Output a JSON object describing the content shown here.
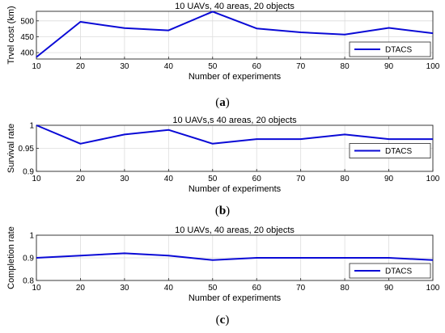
{
  "chart_data": [
    {
      "type": "line",
      "panel_label": "a",
      "title": "10 UAVs, 40 areas, 20 objects",
      "xlabel": "Number of experiments",
      "ylabel": "Trvel cost (km)",
      "x": [
        10,
        20,
        30,
        40,
        50,
        60,
        70,
        80,
        90,
        100
      ],
      "xlim": [
        10,
        100
      ],
      "ylim": [
        380,
        530
      ],
      "yticks": [
        400,
        450,
        500
      ],
      "xticks": [
        10,
        20,
        30,
        40,
        50,
        60,
        70,
        80,
        90,
        100
      ],
      "grid": true,
      "legend_position": "bottom-right",
      "series": [
        {
          "name": "DTACS",
          "color": "#0a0ad6",
          "values": [
            386,
            497,
            477,
            470,
            529,
            476,
            464,
            457,
            478,
            461
          ]
        }
      ]
    },
    {
      "type": "line",
      "panel_label": "b",
      "title": "10 UAVs,s 40 areas, 20 objects",
      "xlabel": "Number of experiments",
      "ylabel": "Survival rate",
      "x": [
        10,
        20,
        30,
        40,
        50,
        60,
        70,
        80,
        90,
        100
      ],
      "xlim": [
        10,
        100
      ],
      "ylim": [
        0.9,
        1.0
      ],
      "yticks": [
        0.9,
        0.95,
        1
      ],
      "xticks": [
        10,
        20,
        30,
        40,
        50,
        60,
        70,
        80,
        90,
        100
      ],
      "grid": true,
      "legend_position": "right",
      "series": [
        {
          "name": "DTACS",
          "color": "#0a0ad6",
          "values": [
            1.0,
            0.96,
            0.98,
            0.99,
            0.96,
            0.97,
            0.97,
            0.98,
            0.97,
            0.97
          ]
        }
      ]
    },
    {
      "type": "line",
      "panel_label": "c",
      "title": "10 UAVs, 40 areas, 20 objects",
      "xlabel": "Number of experiments",
      "ylabel": "Completion rate",
      "x": [
        10,
        20,
        30,
        40,
        50,
        60,
        70,
        80,
        90,
        100
      ],
      "xlim": [
        10,
        100
      ],
      "ylim": [
        0.8,
        1.0
      ],
      "yticks": [
        0.8,
        0.9,
        1
      ],
      "xticks": [
        10,
        20,
        30,
        40,
        50,
        60,
        70,
        80,
        90,
        100
      ],
      "grid": true,
      "legend_position": "bottom-right",
      "series": [
        {
          "name": "DTACS",
          "color": "#0a0ad6",
          "values": [
            0.9,
            0.91,
            0.92,
            0.91,
            0.89,
            0.9,
            0.9,
            0.9,
            0.9,
            0.89
          ]
        }
      ]
    }
  ]
}
